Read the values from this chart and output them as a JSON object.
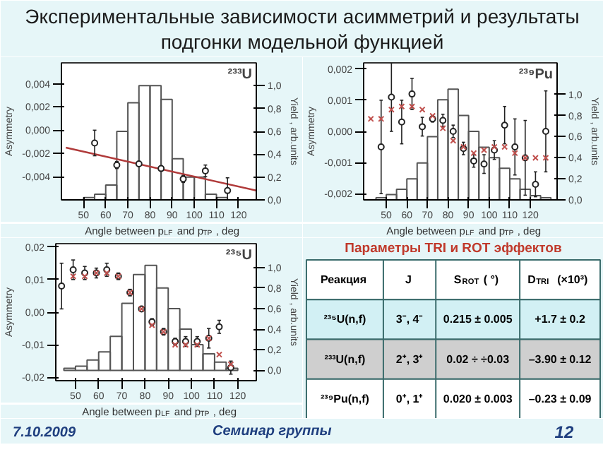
{
  "chart_data": [
    {
      "type": "other",
      "title": "Экспериментальные зависимости асимметрий и результаты подгонки модельной функцией",
      "annotations": [
        "7.10.2009",
        "Семинар группы",
        "12"
      ]
    },
    {
      "type": "scatter",
      "annotations": [
        "²³³U"
      ],
      "xlabel": "Angle between p$_{LF}$ and p$_{TP}$ , deg",
      "ylabel": "Asymmetry",
      "y2label": "Yield , arb.units",
      "xlim": [
        40,
        128
      ],
      "xticks": [
        50,
        60,
        70,
        80,
        90,
        100,
        110,
        120
      ],
      "ylim": [
        -0.006,
        0.0058
      ],
      "yticks": [
        {
          "value": -0.004,
          "label": "-0,004"
        },
        {
          "value": -0.002,
          "label": "-0,002"
        },
        {
          "value": 0,
          "label": "0,000"
        },
        {
          "value": 0.002,
          "label": "0,002"
        },
        {
          "value": 0.004,
          "label": "0,004"
        }
      ],
      "y2lim": [
        0,
        1.2
      ],
      "y2ticks": [
        {
          "value": 0,
          "label": "0,0"
        },
        {
          "value": 0.2,
          "label": "0,2"
        },
        {
          "value": 0.4,
          "label": "0,4"
        },
        {
          "value": 0.6,
          "label": "0,6"
        },
        {
          "value": 0.8,
          "label": "0,8"
        },
        {
          "value": 1.0,
          "label": "1,0"
        }
      ],
      "grid": false,
      "series": [
        {
          "type": "histogram",
          "axis": "y2",
          "color": "#555555",
          "bins": [
            45,
            50,
            55,
            60,
            65,
            70,
            75,
            80,
            85,
            90,
            95,
            100,
            105,
            110,
            115,
            120
          ],
          "values": [
            0.0,
            0.02,
            0.05,
            0.13,
            0.6,
            0.85,
            1.0,
            1.0,
            0.88,
            0.36,
            0.2,
            0.2,
            0.05,
            0.02,
            0.0
          ]
        },
        {
          "type": "line",
          "color": "#b03a3a",
          "x": [
            42,
            128
          ],
          "values": [
            -0.0015,
            -0.0052
          ]
        },
        {
          "type": "scatter",
          "marker": "circle",
          "color": "#222222",
          "x": [
            55,
            65,
            75,
            85,
            95,
            105,
            115
          ],
          "values": [
            -0.0011,
            -0.003,
            -0.0029,
            -0.0033,
            -0.0042,
            -0.0035,
            -0.0052
          ],
          "errors": [
            0.0011,
            0.0003,
            0.0002,
            0.0002,
            0.0003,
            0.0005,
            0.0011
          ]
        }
      ]
    },
    {
      "type": "scatter",
      "annotations": [
        "²³⁹Pu"
      ],
      "xlabel": "Angle between p$_{LF}$ and p$_{TP}$ , deg",
      "ylabel": "Asymmetry",
      "y2label": "Yield , arb.units",
      "xlim": [
        39,
        133
      ],
      "xticks": [
        50,
        60,
        70,
        80,
        90,
        100,
        110,
        120
      ],
      "ylim": [
        -0.0022,
        0.0022
      ],
      "yticks": [
        {
          "value": -0.002,
          "label": "-0,002"
        },
        {
          "value": -0.001,
          "label": "-0,001"
        },
        {
          "value": 0,
          "label": "0,000"
        },
        {
          "value": 0.001,
          "label": "0,001"
        },
        {
          "value": 0.002,
          "label": "0,002"
        }
      ],
      "y2lim": [
        0,
        1.3
      ],
      "y2ticks": [
        {
          "value": 0,
          "label": "0,0"
        },
        {
          "value": 0.2,
          "label": "0,2"
        },
        {
          "value": 0.4,
          "label": "0,4"
        },
        {
          "value": 0.6,
          "label": "0,6"
        },
        {
          "value": 0.8,
          "label": "0,8"
        },
        {
          "value": 1.0,
          "label": "1,0"
        }
      ],
      "grid": false,
      "series": [
        {
          "type": "histogram",
          "axis": "y2",
          "color": "#555555",
          "bins": [
            45,
            50,
            55,
            60,
            65,
            70,
            75,
            80,
            85,
            90,
            95,
            100,
            105,
            110,
            115,
            120,
            125,
            130
          ],
          "values": [
            0.02,
            0.05,
            0.1,
            0.2,
            0.35,
            0.6,
            0.95,
            1.05,
            0.8,
            0.65,
            0.5,
            0.4,
            0.3,
            0.2,
            0.1,
            0.04,
            0.02
          ]
        },
        {
          "type": "scatter",
          "marker": "circle",
          "color": "#222222",
          "x": [
            47.5,
            52.5,
            57.5,
            62.5,
            67.5,
            72.5,
            77.5,
            82.5,
            87.5,
            92.5,
            97.5,
            102.5,
            107.5,
            112.5,
            117.5,
            122.5,
            127.5
          ],
          "values": [
            -0.0005,
            0.0011,
            0.0003,
            0.0012,
            0.00015,
            0.0004,
            0.00035,
            0.0,
            -0.00055,
            -0.00095,
            -0.00105,
            -0.0006,
            0.0002,
            -0.0005,
            -0.00085,
            -0.0017,
            0.0
          ],
          "errors": [
            0.0015,
            0.0011,
            0.0007,
            0.0005,
            0.0003,
            0.0001,
            0.0002,
            0.0002,
            0.0002,
            0.0002,
            0.0003,
            0.0003,
            0.0006,
            0.0009,
            0.0012,
            0.0004,
            0.0013
          ]
        },
        {
          "type": "scatter",
          "marker": "cross",
          "color": "#c0504d",
          "x": [
            42.5,
            47.5,
            52.5,
            57.5,
            62.5,
            67.5,
            72.5,
            77.5,
            82.5,
            87.5,
            92.5,
            97.5,
            102.5,
            107.5,
            112.5,
            117.5,
            122.5,
            127.5
          ],
          "values": [
            0.0004,
            0.0004,
            0.0007,
            0.0008,
            0.0008,
            0.0007,
            0.0005,
            0.0001,
            -0.0003,
            -0.0005,
            -0.0007,
            -0.0006,
            -0.0005,
            -0.0005,
            -0.0007,
            -0.00085,
            -0.00085,
            -0.00085
          ]
        }
      ]
    },
    {
      "type": "scatter",
      "annotations": [
        "²³⁵U"
      ],
      "xlabel": "Angle between p$_{LF}$ and p$_{TP}$ , deg",
      "ylabel": "Asymmetry",
      "y2label": "Yield , arb.units",
      "xlim": [
        41.5,
        128
      ],
      "xticks": [
        50,
        60,
        70,
        80,
        90,
        100,
        110,
        120
      ],
      "ylim": [
        -0.021,
        0.021
      ],
      "yticks": [
        {
          "value": -0.02,
          "label": "-0,02"
        },
        {
          "value": -0.01,
          "label": "-0,01"
        },
        {
          "value": 0,
          "label": "0,00"
        },
        {
          "value": 0.01,
          "label": "0,01"
        },
        {
          "value": 0.02,
          "label": "0,02"
        }
      ],
      "y2lim": [
        -0.1,
        1.23
      ],
      "y2ticks": [
        {
          "value": 0,
          "label": "0,0"
        },
        {
          "value": 0.2,
          "label": "0,2"
        },
        {
          "value": 0.4,
          "label": "0,4"
        },
        {
          "value": 0.6,
          "label": "0,6"
        },
        {
          "value": 0.8,
          "label": "0,8"
        },
        {
          "value": 1.0,
          "label": "1,0"
        }
      ],
      "grid": false,
      "series": [
        {
          "type": "histogram",
          "axis": "y2",
          "color": "#555555",
          "bins": [
            45,
            50,
            55,
            60,
            65,
            70,
            75,
            80,
            85,
            90,
            95,
            100,
            105,
            110,
            115,
            120
          ],
          "values": [
            0.02,
            0.04,
            0.1,
            0.18,
            0.33,
            0.65,
            0.93,
            1.02,
            0.8,
            0.6,
            0.4,
            0.25,
            0.16,
            0.08,
            0.02
          ]
        },
        {
          "type": "scatter",
          "marker": "circle",
          "color": "#222222",
          "x": [
            44,
            49,
            54,
            59,
            63.5,
            68.5,
            73.5,
            78.5,
            83,
            88,
            93,
            97.5,
            102.5,
            107.5,
            112,
            117
          ],
          "values": [
            0.008,
            0.013,
            0.012,
            0.012,
            0.013,
            0.011,
            0.006,
            0.001,
            -0.003,
            -0.006,
            -0.009,
            -0.009,
            -0.009,
            -0.008,
            -0.0045,
            -0.017
          ],
          "errors": [
            0.007,
            0.003,
            0.002,
            0.0015,
            0.002,
            0.001,
            0.001,
            0.0008,
            0.001,
            0.001,
            0.001,
            0.0015,
            0.0015,
            0.003,
            0.002,
            0.002
          ]
        },
        {
          "type": "scatter",
          "marker": "cross",
          "color": "#c0504d",
          "x": [
            49,
            54,
            59,
            63.5,
            68.5,
            73.5,
            78.5,
            83,
            88,
            93,
            97.5,
            102.5,
            107.5,
            112,
            117
          ],
          "values": [
            0.011,
            0.011,
            0.012,
            0.012,
            0.011,
            0.006,
            0.001,
            -0.004,
            -0.006,
            -0.01,
            -0.01,
            -0.01,
            -0.008,
            -0.013,
            -0.016
          ]
        }
      ]
    },
    {
      "type": "other",
      "title": "Параметры TRI и ROT эффектов",
      "categories": [
        "Реакция",
        "J",
        "S$_{ROT}$ ( °)",
        "D$_{TRI}$ (×10³)"
      ],
      "annotations": [
        "²³⁵U(n,f)",
        "3⁻, 4⁻",
        "0.215 ± 0.005",
        "+1.7 ± 0.2",
        "²³³U(n,f)",
        "2⁺, 3⁺",
        "0.02 ÷ ÷0.03",
        "–3.90 ± 0.12",
        "²³⁹Pu(n,f)",
        "0⁺, 1⁺",
        "0.020 ± 0.003",
        "–0.23 ± 0.09"
      ]
    }
  ]
}
